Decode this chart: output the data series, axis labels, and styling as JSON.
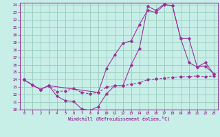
{
  "xlabel": "Windchill (Refroidissement éolien,°C)",
  "background_color": "#c8eee8",
  "grid_color": "#99ccbb",
  "line_color": "#993399",
  "xlim": [
    -0.5,
    23.5
  ],
  "ylim": [
    10,
    24.3
  ],
  "xticks": [
    0,
    1,
    2,
    3,
    4,
    5,
    6,
    7,
    8,
    9,
    10,
    11,
    12,
    13,
    14,
    15,
    16,
    17,
    18,
    19,
    20,
    21,
    22,
    23
  ],
  "yticks": [
    10,
    11,
    12,
    13,
    14,
    15,
    16,
    17,
    18,
    19,
    20,
    21,
    22,
    23,
    24
  ],
  "curve1_x": [
    0,
    1,
    2,
    3,
    4,
    5,
    6,
    7,
    8,
    9,
    10,
    11,
    12,
    13,
    14,
    15,
    16,
    17,
    18,
    19,
    20,
    21,
    22,
    23
  ],
  "curve1_y": [
    14.0,
    13.3,
    12.7,
    13.2,
    11.8,
    11.2,
    11.1,
    10.1,
    9.9,
    10.4,
    12.1,
    13.2,
    13.2,
    16.0,
    18.2,
    23.8,
    23.3,
    24.1,
    23.9,
    19.5,
    16.3,
    15.7,
    15.8,
    14.8
  ],
  "curve2_x": [
    0,
    1,
    2,
    3,
    4,
    5,
    6,
    7,
    8,
    9,
    10,
    11,
    12,
    13,
    14,
    15,
    16,
    17,
    18,
    19,
    20,
    21,
    22,
    23
  ],
  "curve2_y": [
    14.0,
    13.3,
    12.7,
    13.2,
    12.4,
    12.5,
    12.8,
    12.3,
    12.1,
    12.3,
    13.0,
    13.2,
    13.2,
    13.4,
    13.6,
    14.0,
    14.1,
    14.2,
    14.3,
    14.4,
    14.4,
    14.5,
    14.4,
    14.5
  ],
  "curve3_x": [
    0,
    2,
    3,
    9,
    10,
    11,
    12,
    13,
    14,
    15,
    16,
    17,
    18,
    19,
    20,
    21,
    22,
    23
  ],
  "curve3_y": [
    14.0,
    12.7,
    13.2,
    12.3,
    15.5,
    17.3,
    18.9,
    19.2,
    21.4,
    23.3,
    23.0,
    24.0,
    23.9,
    19.5,
    19.5,
    15.7,
    16.3,
    14.8
  ]
}
